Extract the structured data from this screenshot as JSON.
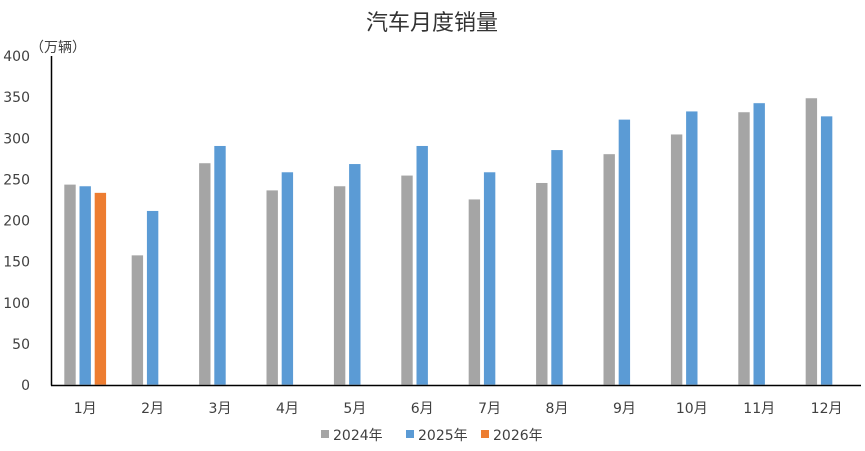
{
  "chart_data": {
    "type": "bar",
    "title": "汽车月度销量",
    "ylabel": "（万辆）",
    "xlabel": "",
    "ylim": [
      0,
      400
    ],
    "yticks": [
      0,
      50,
      100,
      150,
      200,
      250,
      300,
      350,
      400
    ],
    "grid": false,
    "legend_position": "bottom",
    "categories": [
      "1月",
      "2月",
      "3月",
      "4月",
      "5月",
      "6月",
      "7月",
      "8月",
      "9月",
      "10月",
      "11月",
      "12月"
    ],
    "series": [
      {
        "name": "2024年",
        "color": "#A5A5A5",
        "values": [
          244,
          158,
          270,
          237,
          242,
          255,
          226,
          246,
          281,
          305,
          332,
          349
        ]
      },
      {
        "name": "2025年",
        "color": "#5B9BD5",
        "values": [
          242,
          212,
          291,
          259,
          269,
          291,
          259,
          286,
          323,
          333,
          343,
          327
        ]
      },
      {
        "name": "2026年",
        "color": "#ED7D31",
        "values": [
          234,
          null,
          null,
          null,
          null,
          null,
          null,
          null,
          null,
          null,
          null,
          null
        ]
      }
    ]
  }
}
